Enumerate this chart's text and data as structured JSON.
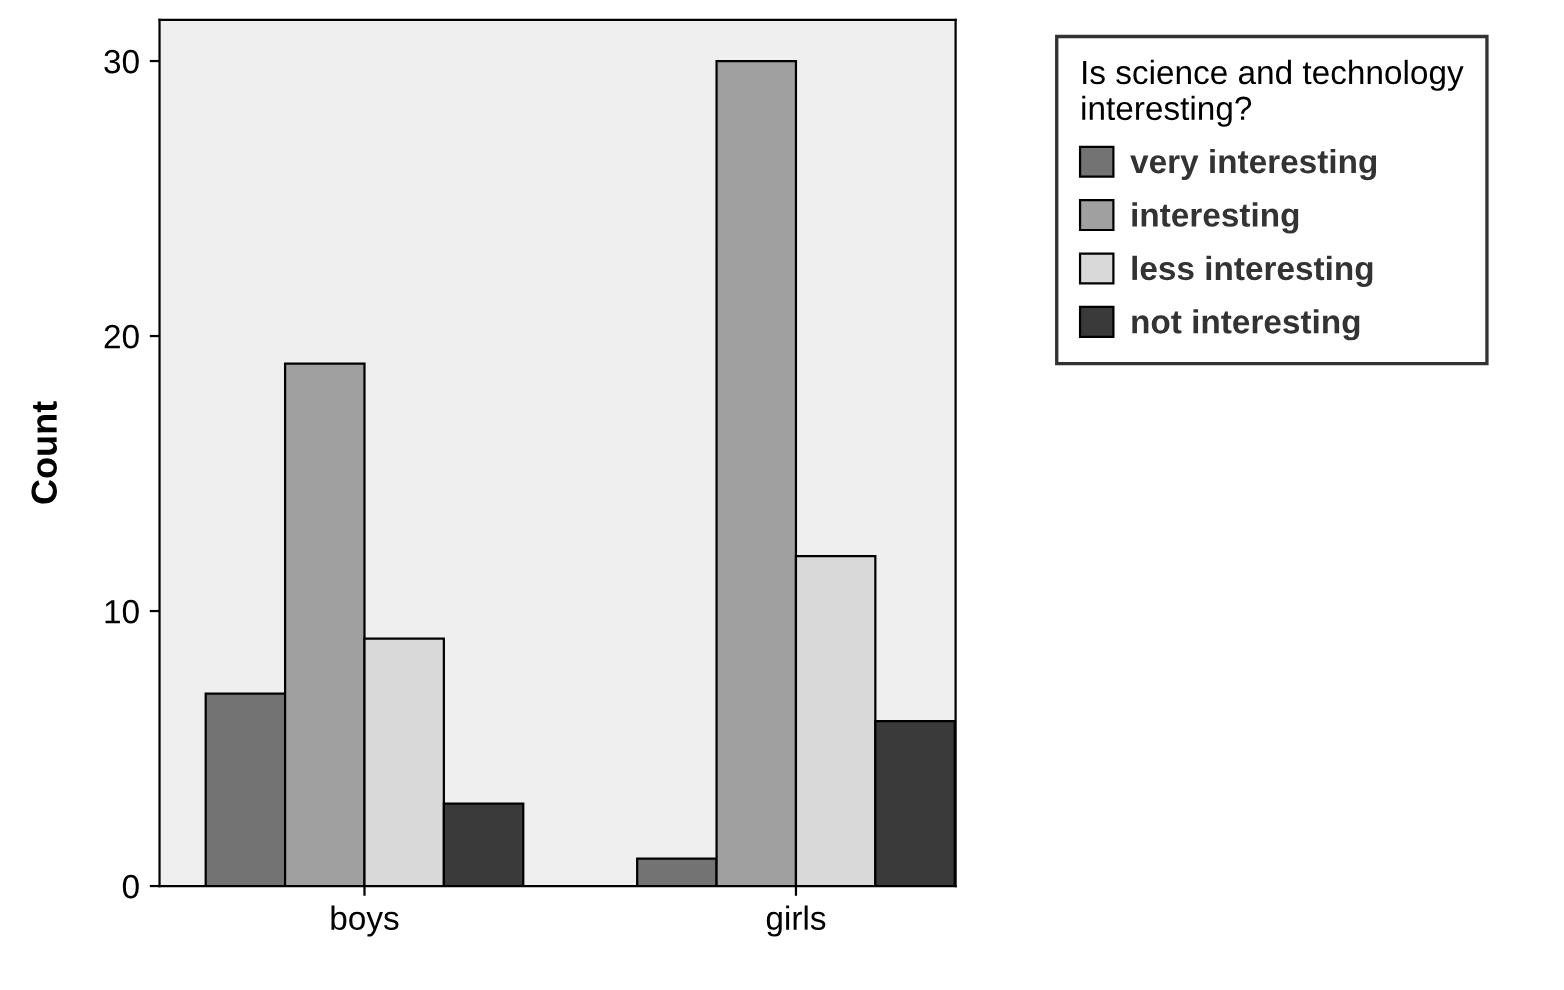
{
  "chart_data": {
    "type": "bar",
    "ylabel": "Count",
    "legend_title": "Is science and technology interesting?",
    "categories": [
      "boys",
      "girls"
    ],
    "series": [
      {
        "name": "very interesting",
        "color": "#737373",
        "values": [
          7,
          1
        ]
      },
      {
        "name": "interesting",
        "color": "#a0a0a0",
        "values": [
          19,
          30
        ]
      },
      {
        "name": "less interesting",
        "color": "#d9d9d9",
        "values": [
          9,
          12
        ]
      },
      {
        "name": "not interesting",
        "color": "#3a3a3a",
        "values": [
          3,
          6
        ]
      }
    ],
    "ylim": [
      0,
      31.5
    ],
    "yticks": [
      0,
      10,
      20,
      30
    ],
    "grid": false,
    "legend": "top right"
  }
}
